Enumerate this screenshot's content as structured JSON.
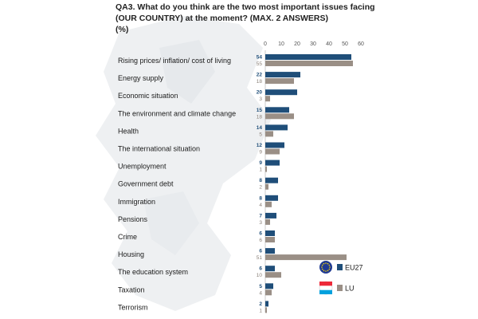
{
  "title": {
    "line1": "QA3. What do you think are the two most important issues facing",
    "line2": "(OUR COUNTRY) at the moment? (MAX. 2 ANSWERS)",
    "line3": "(%)"
  },
  "colors": {
    "eu27": "#1f4e79",
    "lu": "#9a8f86",
    "map": "#eef0f2"
  },
  "chart_data": {
    "type": "bar",
    "orientation": "horizontal",
    "xlim": [
      0,
      60
    ],
    "ticks": [
      0,
      10,
      20,
      30,
      40,
      50,
      60
    ],
    "grid": false,
    "legend_position": "bottom-right",
    "categories": [
      "Rising prices/ inflation/ cost of living",
      "Energy supply",
      "Economic situation",
      "The environment and climate change",
      "Health",
      "The international situation",
      "Unemployment",
      "Government debt",
      "Immigration",
      "Pensions",
      "Crime",
      "Housing",
      "The education system",
      "Taxation",
      "Terrorism"
    ],
    "series": [
      {
        "name": "EU27",
        "values": [
          54,
          22,
          20,
          15,
          14,
          12,
          9,
          8,
          8,
          7,
          6,
          6,
          6,
          5,
          2
        ]
      },
      {
        "name": "LU",
        "values": [
          55,
          18,
          3,
          18,
          5,
          9,
          1,
          2,
          4,
          3,
          6,
          51,
          10,
          4,
          1
        ]
      }
    ]
  }
}
